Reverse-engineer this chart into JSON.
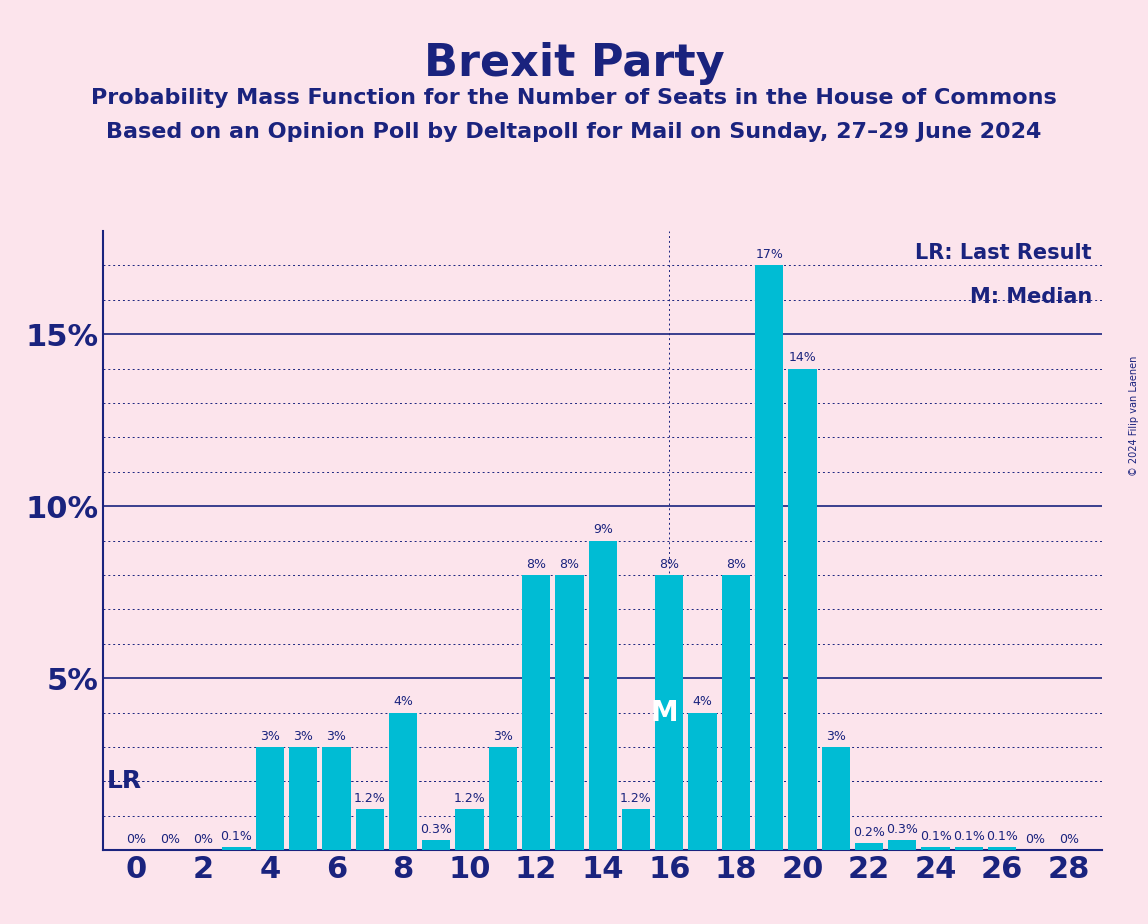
{
  "title": "Brexit Party",
  "subtitle1": "Probability Mass Function for the Number of Seats in the House of Commons",
  "subtitle2": "Based on an Opinion Poll by Deltapoll for Mail on Sunday, 27–29 June 2024",
  "copyright": "© 2024 Filip van Laenen",
  "background_color": "#fce4ec",
  "bar_color": "#00bcd4",
  "title_color": "#1a237e",
  "axis_color": "#1a237e",
  "label_color": "#1a237e",
  "seats": [
    0,
    1,
    2,
    3,
    4,
    5,
    6,
    7,
    8,
    9,
    10,
    11,
    12,
    13,
    14,
    15,
    16,
    17,
    18,
    19,
    20,
    21,
    22,
    23,
    24,
    25,
    26,
    27,
    28
  ],
  "probabilities": [
    0.0,
    0.0,
    0.0,
    0.1,
    3.0,
    3.0,
    3.0,
    1.2,
    4.0,
    0.3,
    1.2,
    3.0,
    8.0,
    8.0,
    9.0,
    1.2,
    8.0,
    4.0,
    8.0,
    17.0,
    14.0,
    3.0,
    0.2,
    0.3,
    0.1,
    0.1,
    0.1,
    0.0,
    0.0
  ],
  "last_result_seat": 0,
  "median_seat": 16,
  "lr_level": 2.0,
  "ylim": [
    0,
    18
  ],
  "legend_lr": "LR: Last Result",
  "legend_m": "M: Median",
  "lr_label": "LR",
  "m_label": "M",
  "bar_label_fontsize": 9,
  "title_fontsize": 32,
  "subtitle_fontsize": 16,
  "axis_label_fontsize": 22,
  "legend_fontsize": 15,
  "lr_label_fontsize": 18,
  "m_label_fontsize": 20,
  "solid_levels": [
    5,
    10,
    15
  ],
  "dotted_levels": [
    1,
    2,
    3,
    4,
    6,
    7,
    8,
    9,
    11,
    12,
    13,
    14,
    16,
    17
  ]
}
